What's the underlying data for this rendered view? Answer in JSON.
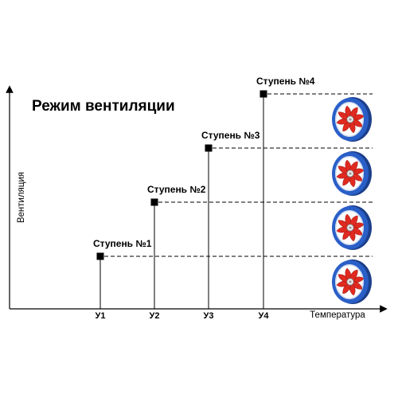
{
  "diagram": {
    "title": "Режим вентиляции",
    "y_axis_label": "Вентиляция",
    "x_axis_label": "Температура",
    "x_ticks": [
      "У1",
      "У2",
      "У3",
      "У4"
    ],
    "steps": [
      {
        "label": "Ступень №1",
        "x_tick": "У1",
        "level": 1
      },
      {
        "label": "Ступень №2",
        "x_tick": "У2",
        "level": 2
      },
      {
        "label": "Ступень №3",
        "x_tick": "У3",
        "level": 3
      },
      {
        "label": "Ступень №4",
        "x_tick": "У4",
        "level": 4
      }
    ],
    "fan_count": 4,
    "colors": {
      "axis": "#000000",
      "dashed_line": "#000000",
      "fan_housing": "#2a5fc8",
      "fan_blade": "#e02a20",
      "fan_hub": "#eeeeee"
    }
  }
}
